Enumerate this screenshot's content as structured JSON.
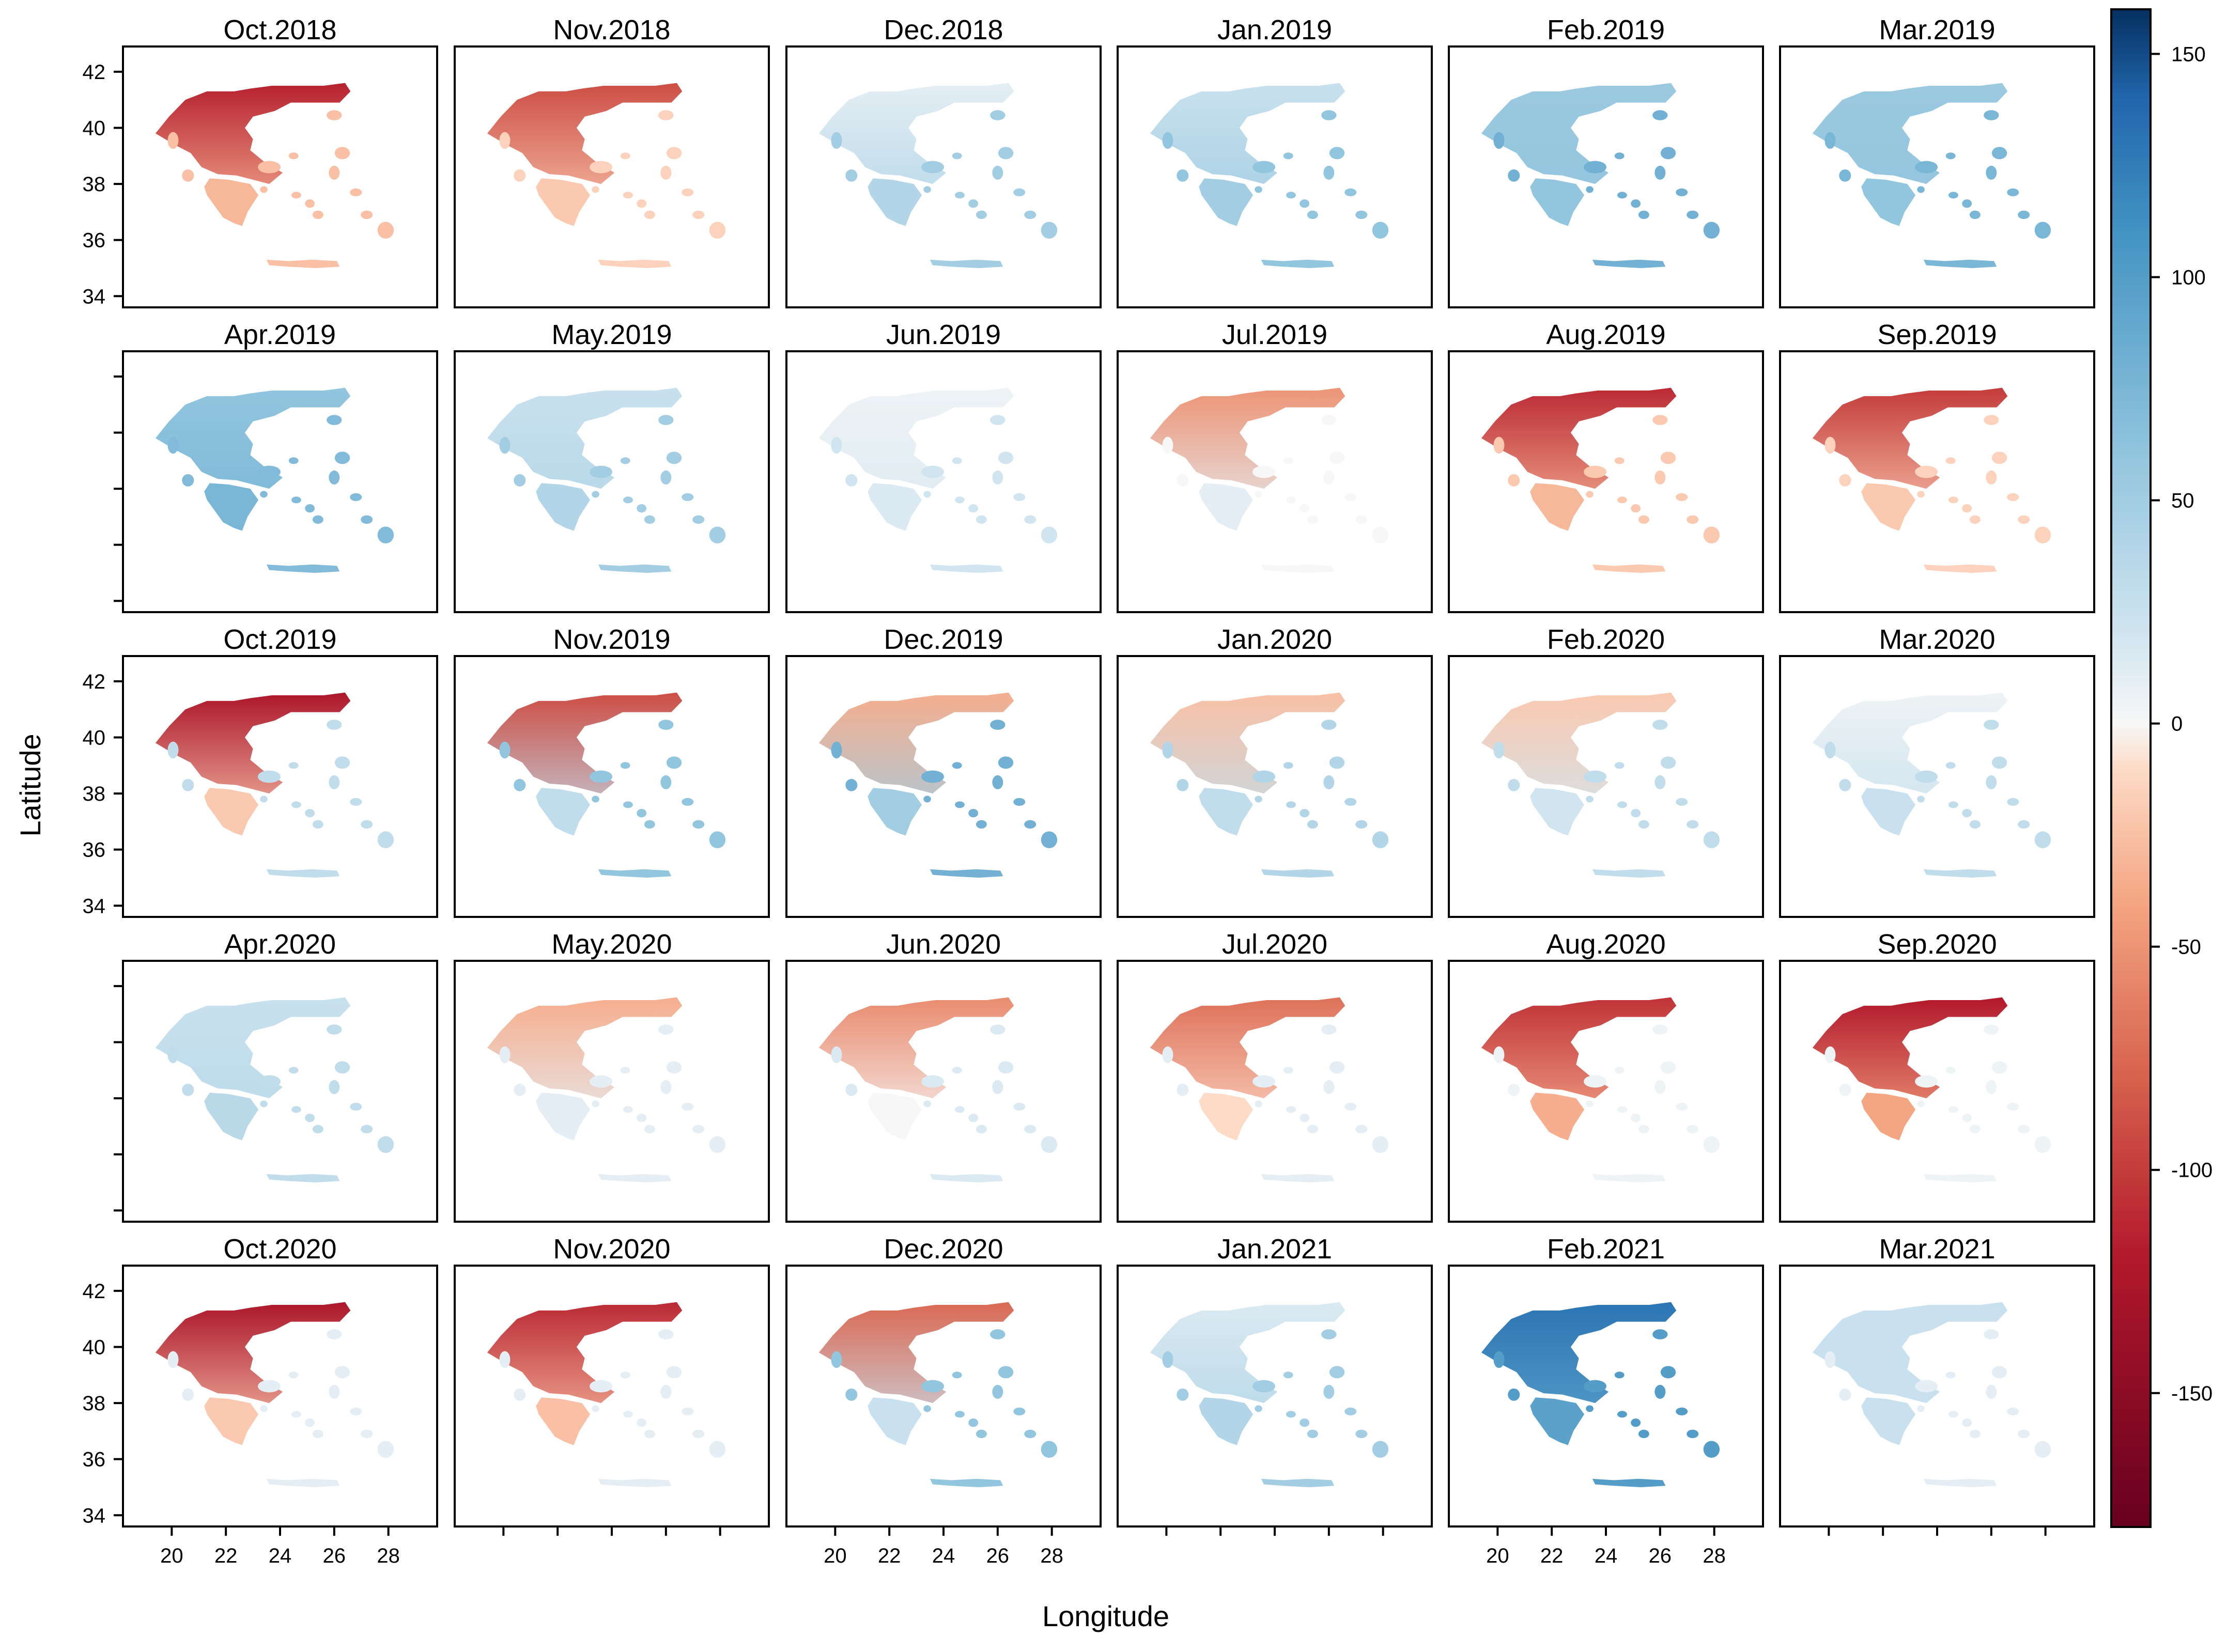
{
  "chart_data": {
    "type": "heatmap",
    "xlabel": "Longitude",
    "ylabel": "Latitude",
    "x_ticks": [
      20,
      22,
      24,
      26,
      28
    ],
    "y_ticks": [
      34,
      36,
      38,
      40,
      42
    ],
    "xlim": [
      18.2,
      29.8
    ],
    "ylim": [
      33.6,
      42.9
    ],
    "colorbar": {
      "ticks": [
        150,
        100,
        50,
        0,
        -50,
        -100,
        -150
      ],
      "range": [
        -180,
        160
      ],
      "colors": {
        "-180": "#67001f",
        "-120": "#b2182b",
        "-80": "#d6604d",
        "-40": "#f4a582",
        "-10": "#fddbc7",
        "0": "#f7f7f7",
        "20": "#d1e5f0",
        "60": "#92c5de",
        "110": "#4393c3",
        "140": "#2166ac",
        "160": "#053061"
      }
    },
    "panels": [
      {
        "title": "Oct.2018",
        "north": -115,
        "south": -30,
        "islands": -25
      },
      {
        "title": "Nov.2018",
        "north": -90,
        "south": -20,
        "islands": -15
      },
      {
        "title": "Dec.2018",
        "north": 10,
        "south": 40,
        "islands": 50
      },
      {
        "title": "Jan.2019",
        "north": 25,
        "south": 50,
        "islands": 60
      },
      {
        "title": "Feb.2019",
        "north": 55,
        "south": 60,
        "islands": 80
      },
      {
        "title": "Mar.2019",
        "north": 55,
        "south": 60,
        "islands": 75
      },
      {
        "title": "Apr.2019",
        "north": 60,
        "south": 75,
        "islands": 70
      },
      {
        "title": "May.2019",
        "north": 25,
        "south": 40,
        "islands": 50
      },
      {
        "title": "Jun.2019",
        "north": 5,
        "south": 15,
        "islands": 20
      },
      {
        "title": "Jul.2019",
        "north": -50,
        "south": 10,
        "islands": 0
      },
      {
        "title": "Aug.2019",
        "north": -110,
        "south": -30,
        "islands": -20
      },
      {
        "title": "Sep.2019",
        "north": -100,
        "south": -20,
        "islands": -15
      },
      {
        "title": "Oct.2019",
        "north": -125,
        "south": -20,
        "islands": 30
      },
      {
        "title": "Nov.2019",
        "north": -90,
        "south": 30,
        "islands": 60
      },
      {
        "title": "Dec.2019",
        "north": -35,
        "south": 50,
        "islands": 80
      },
      {
        "title": "Jan.2020",
        "north": -25,
        "south": 30,
        "islands": 40
      },
      {
        "title": "Feb.2020",
        "north": -20,
        "south": 20,
        "islands": 30
      },
      {
        "title": "Mar.2020",
        "north": 5,
        "south": 25,
        "islands": 30
      },
      {
        "title": "Apr.2020",
        "north": 25,
        "south": 35,
        "islands": 30
      },
      {
        "title": "May.2020",
        "north": -35,
        "south": 10,
        "islands": 10
      },
      {
        "title": "Jun.2020",
        "north": -55,
        "south": 0,
        "islands": 15
      },
      {
        "title": "Jul.2020",
        "north": -70,
        "south": -10,
        "islands": 10
      },
      {
        "title": "Aug.2020",
        "north": -105,
        "south": -35,
        "islands": 5
      },
      {
        "title": "Sep.2020",
        "north": -120,
        "south": -40,
        "islands": 5
      },
      {
        "title": "Oct.2020",
        "north": -125,
        "south": -20,
        "islands": 10
      },
      {
        "title": "Nov.2020",
        "north": -110,
        "south": -25,
        "islands": 10
      },
      {
        "title": "Dec.2020",
        "north": -75,
        "south": 25,
        "islands": 60
      },
      {
        "title": "Jan.2021",
        "north": 15,
        "south": 40,
        "islands": 50
      },
      {
        "title": "Feb.2021",
        "north": 130,
        "south": 95,
        "islands": 100
      },
      {
        "title": "Mar.2021",
        "north": 25,
        "south": 25,
        "islands": 10
      }
    ]
  }
}
